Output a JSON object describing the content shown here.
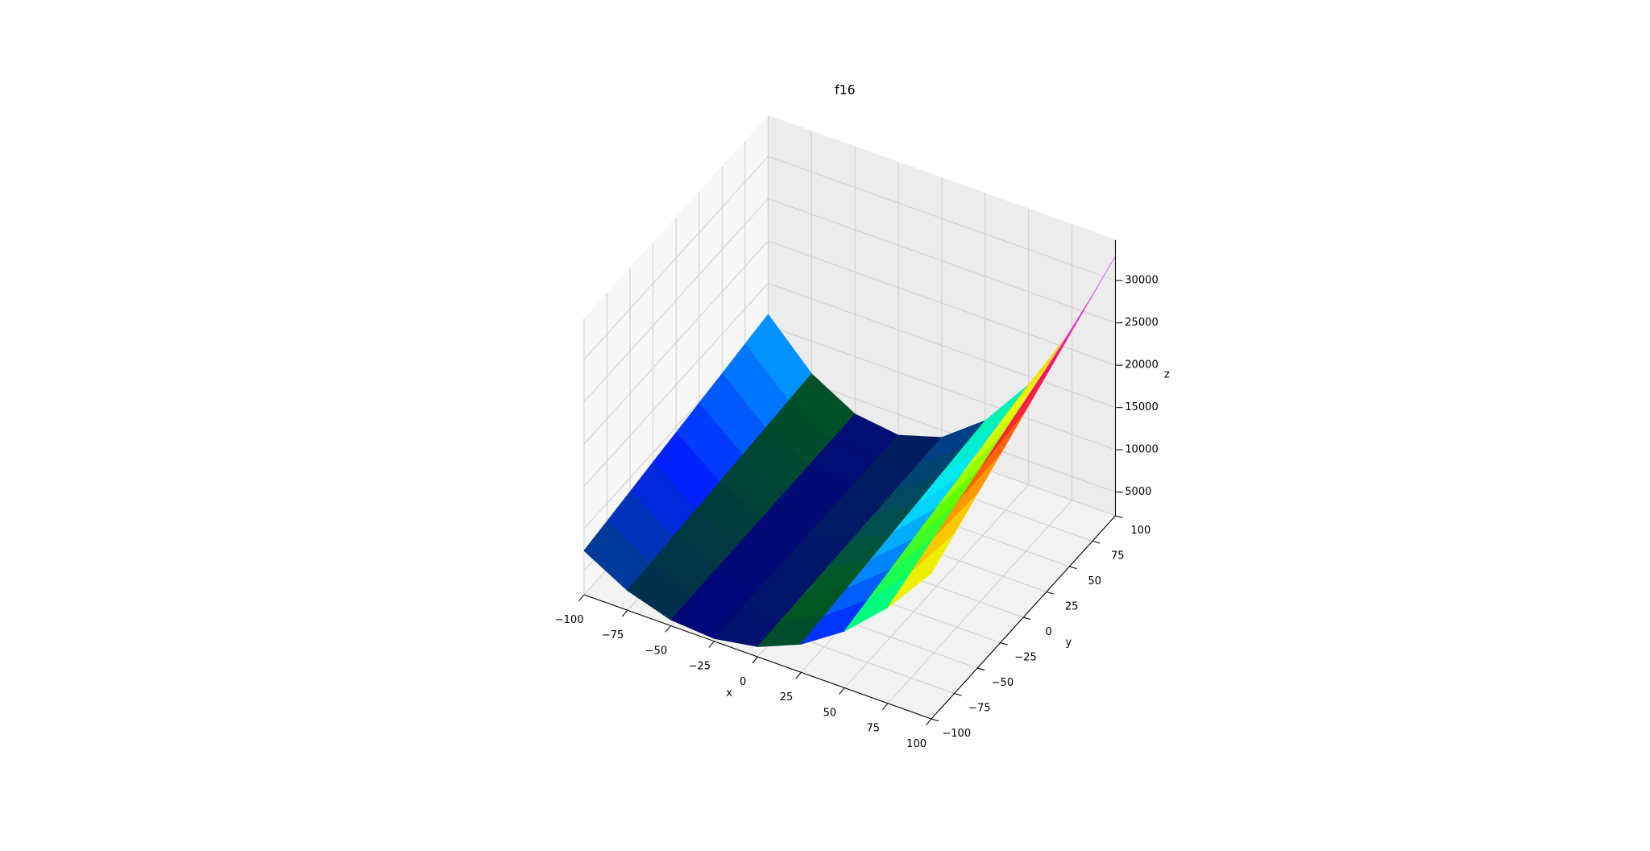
{
  "chart_data": {
    "type": "surface",
    "title": "f16",
    "x_label": "x",
    "y_label": "y",
    "z_label": "z",
    "x": [
      -100,
      -75,
      -50,
      -25,
      0,
      25,
      50,
      75,
      100
    ],
    "y": [
      -100,
      -75,
      -50,
      -25,
      0,
      25,
      50,
      75,
      100
    ],
    "z": [
      [
        7400,
        4525,
        2900,
        2525,
        3400,
        5525,
        8900,
        13525,
        19400
      ],
      [
        7890,
        4728,
        2940,
        2528,
        3490,
        5828,
        9540,
        14628,
        21090
      ],
      [
        8380,
        4930,
        2980,
        2530,
        3580,
        6130,
        10180,
        15730,
        22780
      ],
      [
        8870,
        5133,
        3020,
        2533,
        3670,
        6433,
        10820,
        16833,
        24470
      ],
      [
        9360,
        5335,
        3060,
        2535,
        3760,
        6735,
        11460,
        17935,
        26160
      ],
      [
        9850,
        5538,
        3100,
        2538,
        3850,
        7038,
        12100,
        19038,
        27850
      ],
      [
        10340,
        5740,
        3140,
        2540,
        3940,
        7340,
        12740,
        20140,
        29540
      ],
      [
        10830,
        5943,
        3180,
        2543,
        4030,
        7643,
        13380,
        21243,
        31230
      ],
      [
        11320,
        6145,
        3220,
        2545,
        4120,
        7945,
        14020,
        22345,
        32920
      ]
    ],
    "xlim": [
      -100,
      100
    ],
    "ylim": [
      -100,
      100
    ],
    "zlim": [
      2200,
      34800
    ],
    "xticks": [
      {
        "value": -100,
        "label": "−100"
      },
      {
        "value": -75,
        "label": "−75"
      },
      {
        "value": -50,
        "label": "−50"
      },
      {
        "value": -25,
        "label": "−25"
      },
      0,
      25,
      50,
      75,
      100
    ],
    "yticks": [
      {
        "value": -100,
        "label": "−100"
      },
      {
        "value": -75,
        "label": "−75"
      },
      {
        "value": -50,
        "label": "−50"
      },
      {
        "value": -25,
        "label": "−25"
      },
      0,
      25,
      50,
      75,
      100
    ],
    "zticks": [
      5000,
      10000,
      15000,
      20000,
      25000,
      30000
    ],
    "colormap": [
      "#000080",
      "#005a1e",
      "#0020ff",
      "#00e5ff",
      "#00ff70",
      "#5fff00",
      "#e8ff00",
      "#ffc000",
      "#ff6a00",
      "#ff0050",
      "#e040e0",
      "#b86bff",
      "#f5d6ff",
      "#fef8fe"
    ],
    "grid": true
  }
}
